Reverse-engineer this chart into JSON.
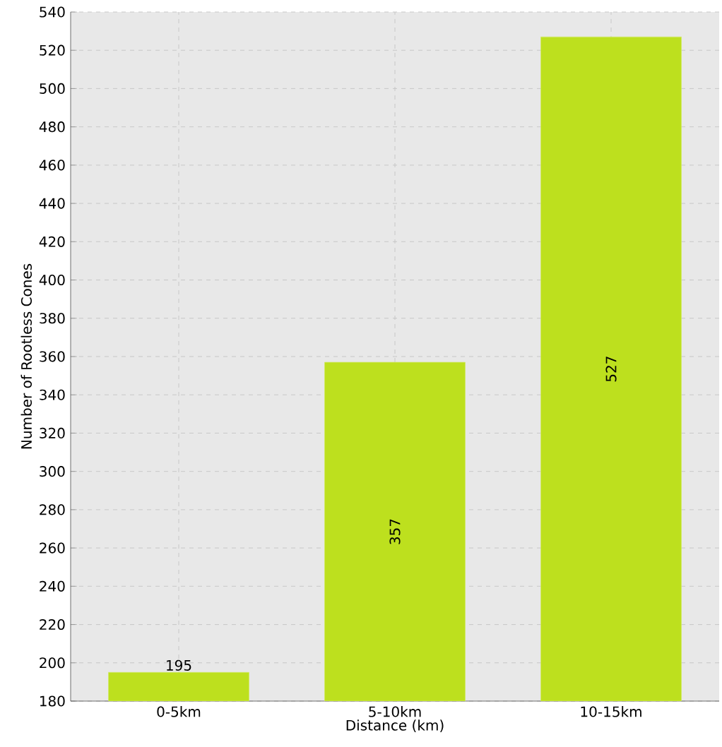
{
  "chart_data": {
    "type": "bar",
    "xlabel": "Distance (km)",
    "ylabel": "Number of Rootless Cones",
    "categories": [
      "0-5km",
      "5-10km",
      "10-15km"
    ],
    "values": [
      195,
      357,
      527
    ],
    "color": "#bde01e",
    "ylim": [
      180,
      540
    ],
    "yticks": [
      180,
      200,
      220,
      240,
      260,
      280,
      300,
      320,
      340,
      360,
      380,
      400,
      420,
      440,
      460,
      480,
      500,
      520,
      540
    ],
    "grid": true,
    "data_labels": true
  }
}
